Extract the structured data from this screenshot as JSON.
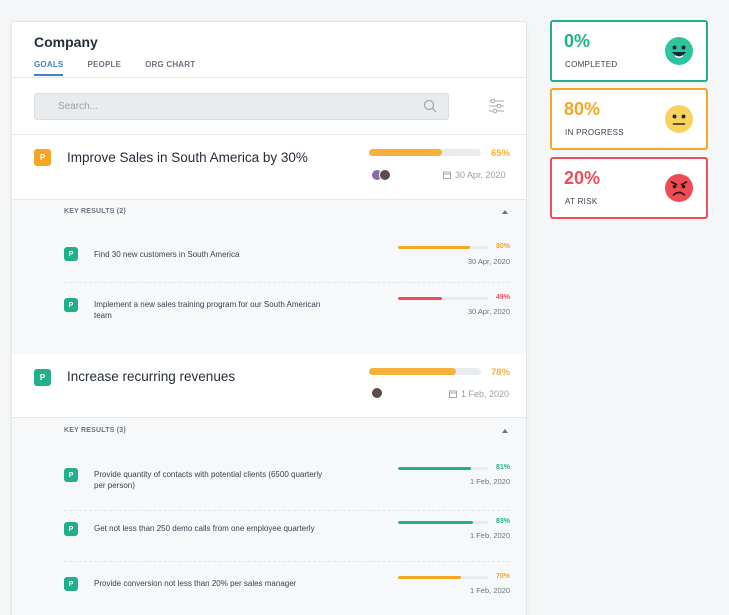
{
  "panel": {
    "title": "Company",
    "tabs": [
      "GOALS",
      "PEOPLE",
      "ORG CHART"
    ],
    "active_tab": "GOALS"
  },
  "search": {
    "placeholder": "Search..."
  },
  "goals": [
    {
      "badge": "P",
      "badge_color": "#f5a623",
      "title": "Improve Sales in South America by 30%",
      "progress": 65,
      "progress_label": "65%",
      "bar_color": "#f5b13a",
      "date": "30 Apr, 2020",
      "key_results_label": "KEY RESULTS (2)",
      "key_results": [
        {
          "badge": "P",
          "text": "Find 30 new customers in South America",
          "progress": 80,
          "progress_label": "80%",
          "color": "#f5a623",
          "date": "30 Apr, 2020"
        },
        {
          "badge": "P",
          "text": "Implement a new sales training program for our South American team",
          "progress": 49,
          "progress_label": "49%",
          "color": "#ea4f5b",
          "date": "30 Apr, 2020"
        }
      ]
    },
    {
      "badge": "P",
      "badge_color": "#21b08a",
      "title": "Increase recurring revenues",
      "progress": 78,
      "progress_label": "78%",
      "bar_color": "#f5b13a",
      "date": "1 Feb, 2020",
      "key_results_label": "KEY RESULTS (3)",
      "key_results": [
        {
          "badge": "P",
          "text": "Provide quantity of contacts with potential clients (6500 quarterly per person)",
          "progress": 81,
          "progress_label": "81%",
          "color": "#21b08a",
          "date": "1 Feb, 2020"
        },
        {
          "badge": "P",
          "text": "Get not less than 250 demo calls from one employee quarterly",
          "progress": 83,
          "progress_label": "83%",
          "color": "#21b08a",
          "date": "1 Feb, 2020"
        },
        {
          "badge": "P",
          "text": "Provide conversion not less than 20% per sales manager",
          "progress": 70,
          "progress_label": "70%",
          "color": "#f5a623",
          "date": "1 Feb, 2020"
        }
      ]
    }
  ],
  "stats": [
    {
      "value": "0%",
      "label": "COMPLETED",
      "color": "#21b08a",
      "face": "happy-face-icon",
      "face_color": "#2ec4a0"
    },
    {
      "value": "80%",
      "label": "IN PROGRESS",
      "color": "#f5a623",
      "face": "neutral-face-icon",
      "face_color": "#f7d35c"
    },
    {
      "value": "20%",
      "label": "AT RISK",
      "color": "#ea4f5b",
      "face": "angry-face-icon",
      "face_color": "#ef4b55"
    }
  ]
}
